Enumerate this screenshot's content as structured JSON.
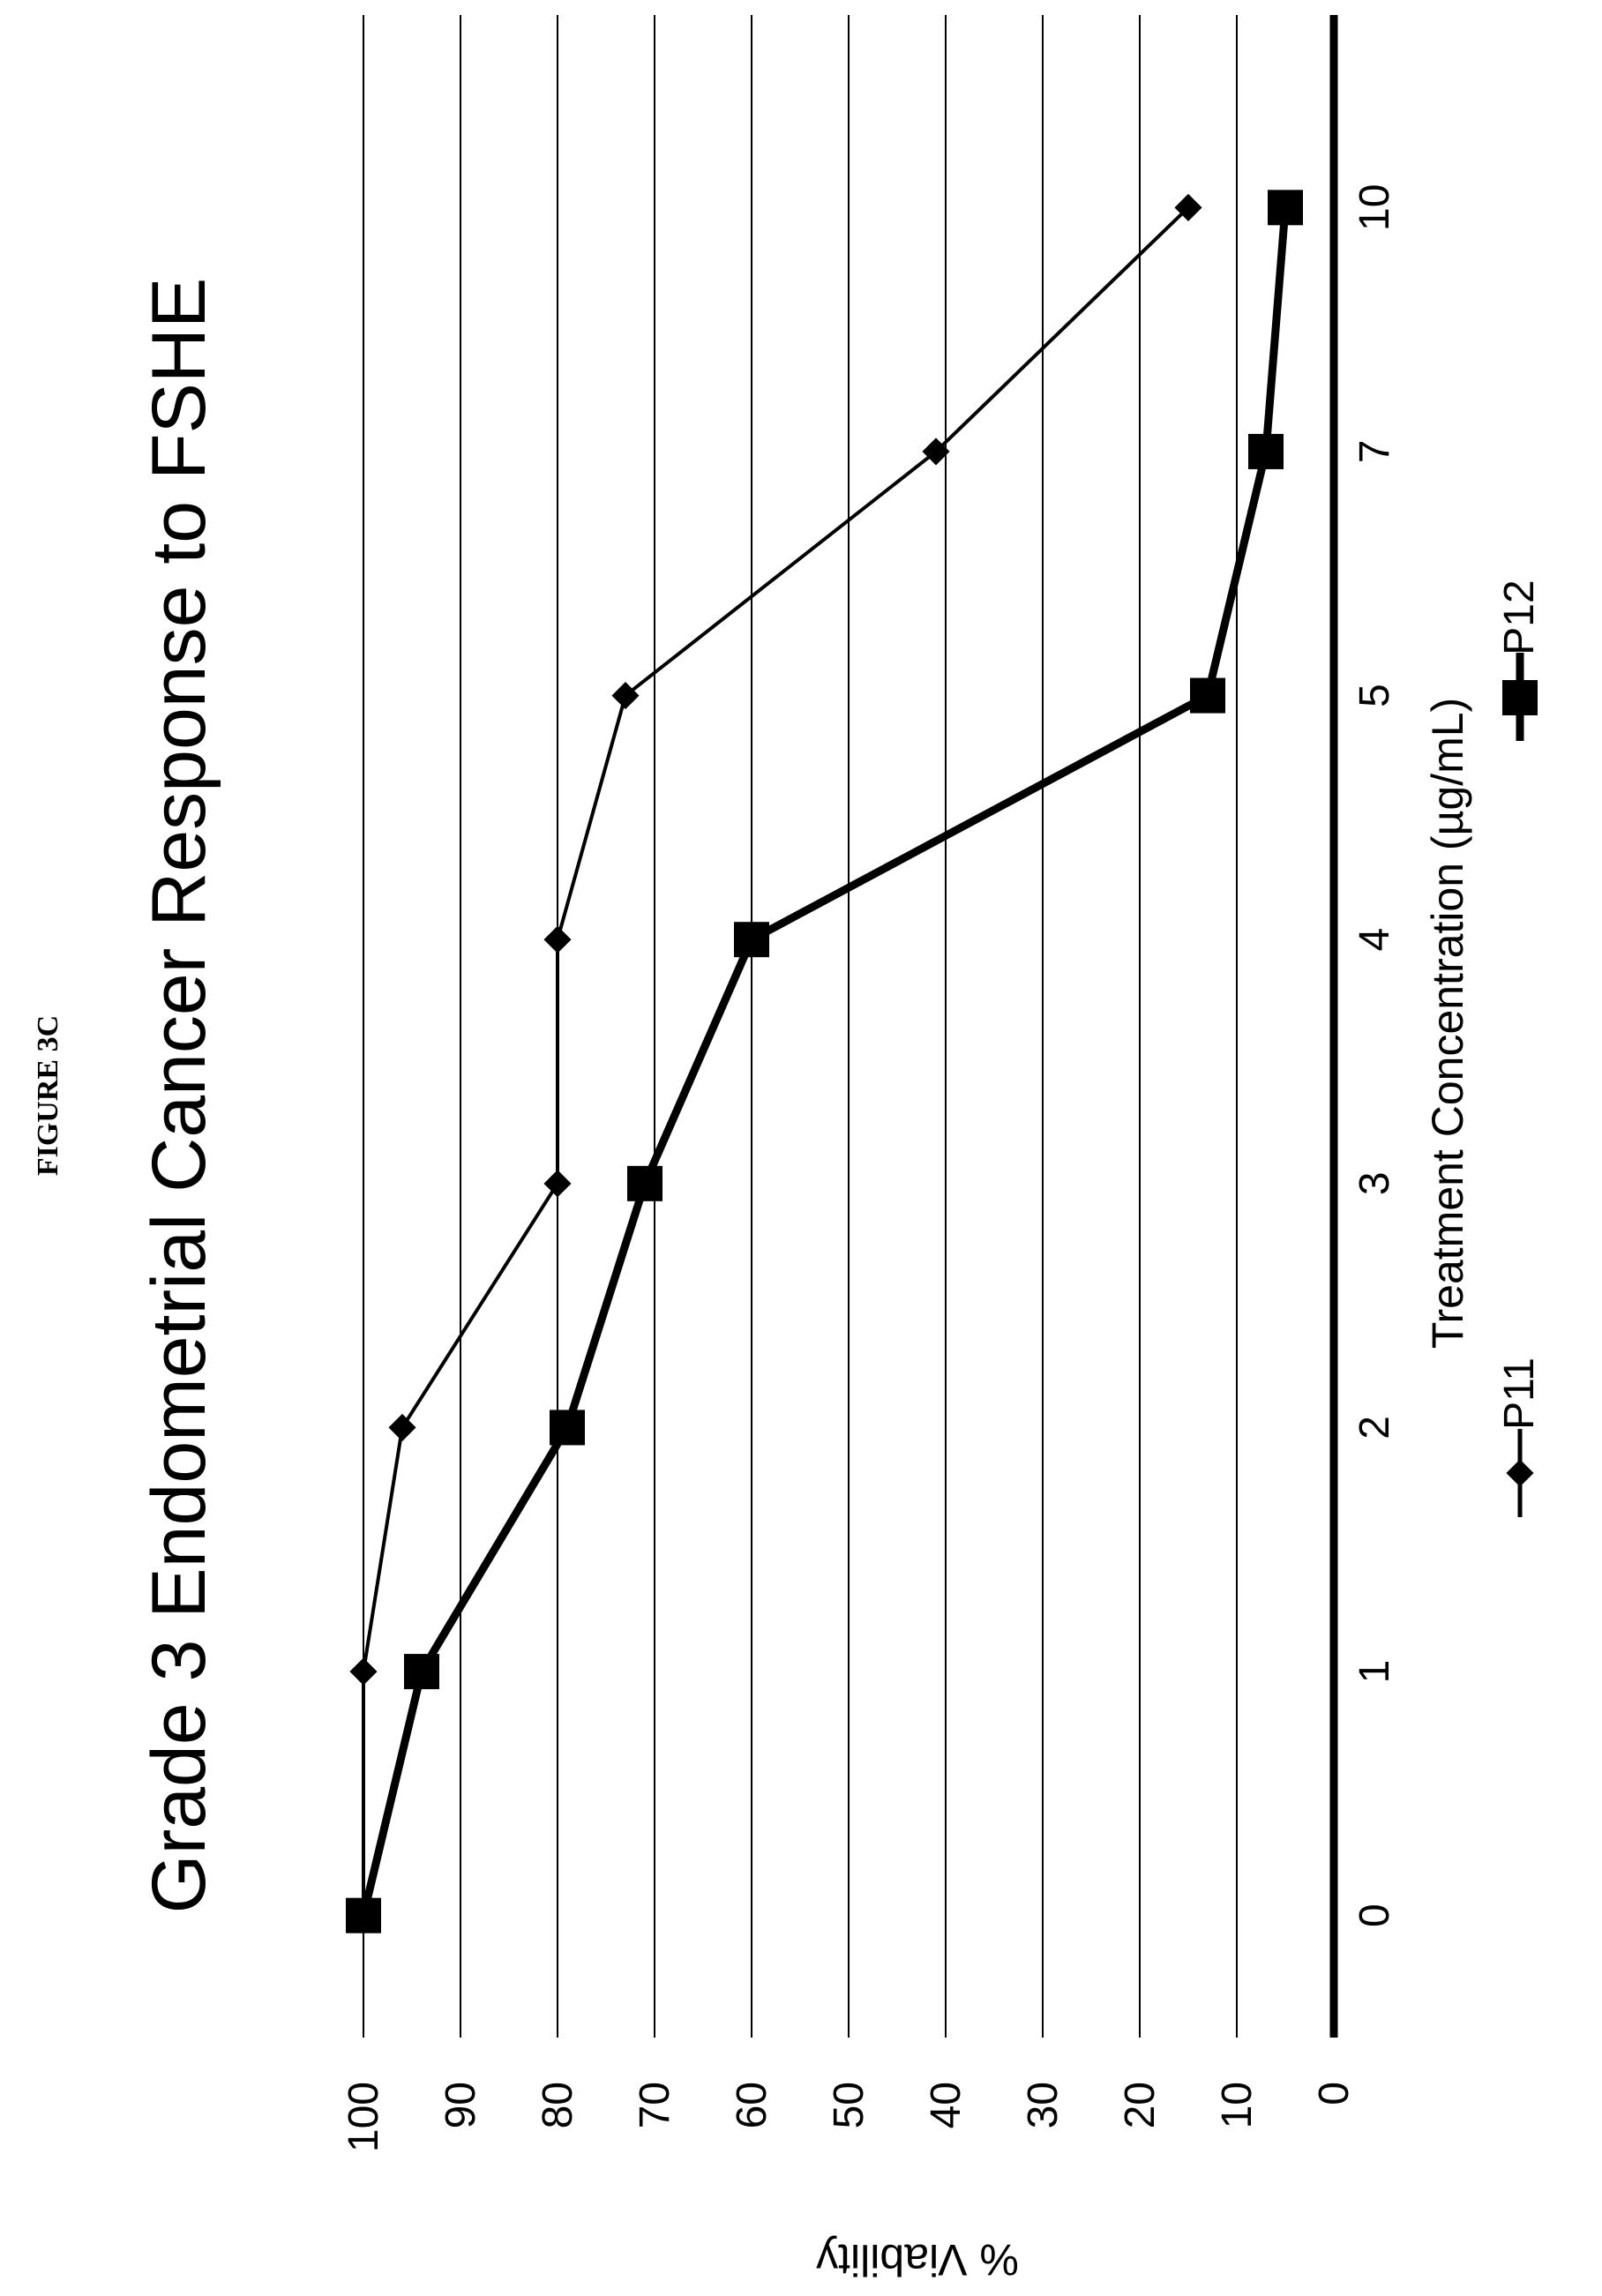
{
  "figure_label": "FIGURE 3C",
  "chart_data": {
    "type": "line",
    "title": "Grade 3 Endometrial Cancer Response to FSHE",
    "xlabel": "Treatment Concentration (µg/mL)",
    "ylabel": "% Viability",
    "categories": [
      "0",
      "1",
      "2",
      "3",
      "4",
      "5",
      "7",
      "10"
    ],
    "y_ticks": [
      "0",
      "10",
      "20",
      "30",
      "40",
      "50",
      "60",
      "70",
      "80",
      "90",
      "100"
    ],
    "ylim": [
      0,
      100
    ],
    "grid": true,
    "legend_position": "bottom",
    "orientation": "rotated 90° counter-clockwise",
    "series": [
      {
        "name": "P11",
        "marker": "diamond",
        "line": "thin",
        "color": "#000000",
        "values": [
          100,
          100,
          96,
          80,
          80,
          73,
          41,
          15
        ]
      },
      {
        "name": "P12",
        "marker": "square",
        "line": "thick",
        "color": "#000000",
        "values": [
          100,
          94,
          79,
          71,
          60,
          13,
          7,
          5
        ]
      }
    ]
  }
}
